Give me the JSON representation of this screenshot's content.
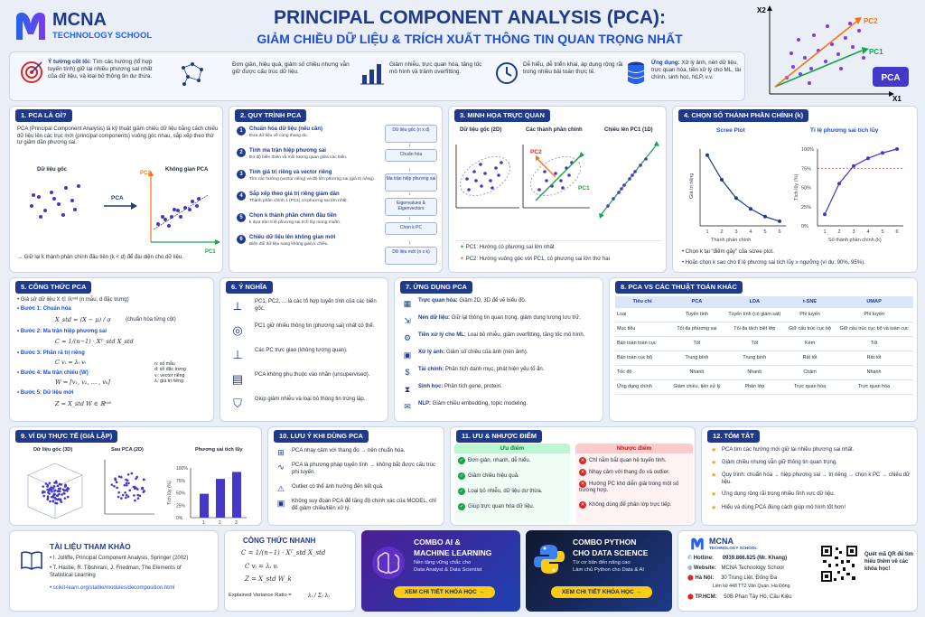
{
  "brand": {
    "name": "MCNA",
    "sub": "TECHNOLOGY SCHOOL"
  },
  "title": {
    "main": "PRINCIPAL COMPONENT ANALYSIS (PCA):",
    "sub": "GIẢM CHIỀU DỮ LIỆU & TRÍCH XUẤT THÔNG TIN QUAN TRỌNG NHẤT"
  },
  "hero": {
    "x2": "X2",
    "x1": "X1",
    "pc1": "PC1",
    "pc2": "PC2",
    "badge": "PCA"
  },
  "banner": {
    "b1_label": "Ý tưởng cốt lõi:",
    "b1_text": "Tìm các hướng (tổ hợp tuyến tính) giữ lại nhiều phương sai nhất của dữ liệu, và loại bỏ thông tin dư thừa.",
    "b2": "Đơn giản, hiệu quả, giảm số chiều nhưng vẫn giữ được cấu trúc dữ liệu.",
    "b3": "Giảm nhiễu, trực quan hóa, tăng tốc mô hình và tránh overfitting.",
    "b4": "Dễ hiểu, dễ triển khai, áp dụng rộng rãi trong nhiều bài toán thực tế.",
    "b5_label": "Ứng dụng:",
    "b5_text": "Xử lý ảnh, nén dữ liệu, trực quan hóa, tiền xử lý cho ML, tài chính, sinh học, NLP, v.v."
  },
  "s1": {
    "head": "1. PCA LÀ GÌ?",
    "text": "PCA (Principal Component Analysis) là kỹ thuật giảm chiều dữ liệu bằng cách chiếu dữ liệu lên các trục mới (principal components) vuông góc nhau, sắp xếp theo thứ tự giảm dần phương sai.",
    "orig": "Dữ liệu gốc",
    "space": "Không gian PCA",
    "pca": "PCA",
    "pc1": "PC1",
    "pc2": "PC2",
    "note": "→ Giữ lại k thành phần chính đầu tiên (k < d) để đại diện cho dữ liệu."
  },
  "s2": {
    "head": "2. QUY TRÌNH PCA",
    "steps": [
      {
        "n": "1",
        "t": "Chuẩn hóa dữ liệu (nếu cần)",
        "d": "Đưa dữ liệu về cùng thang đo."
      },
      {
        "n": "2",
        "t": "Tính ma trận hiệp phương sai",
        "d": "Đo độ biến thiên và mối tương quan giữa các biến."
      },
      {
        "n": "3",
        "t": "Tính giá trị riêng và vector riêng",
        "d": "Tìm các hướng (vector riêng) và độ lớn phương sai (giá trị riêng)."
      },
      {
        "n": "4",
        "t": "Sắp xếp theo giá trị riêng giảm dần",
        "d": "Thành phần chính 1 (PC1) có phương sai lớn nhất."
      },
      {
        "n": "5",
        "t": "Chọn k thành phần chính đầu tiên",
        "d": "k dựa trên tỉ lệ phương sai tích lũy mong muốn."
      },
      {
        "n": "6",
        "t": "Chiếu dữ liệu lên không gian mới",
        "d": "Biến đổi dữ liệu sang không gian k chiều."
      }
    ],
    "flow": [
      "Dữ liệu gốc (n x d)",
      "Chuẩn hóa",
      "Ma trận hiệp phương sai",
      "Eigenvalues & Eigenvectors",
      "Chọn k PC",
      "Dữ liệu mới (n x k)"
    ]
  },
  "s3": {
    "head": "3. MINH HỌA TRỰC QUAN",
    "c1": "Dữ liệu gốc (2D)",
    "c2": "Các thành phần chính",
    "c3": "Chiếu lên PC1 (1D)",
    "pc1": "PC1",
    "pc2": "PC2",
    "l1": "PC1: Hướng có phương sai lớn nhất",
    "l2": "PC2: Hướng vuông góc với PC1, có phương sai lớn thứ hai"
  },
  "s4": {
    "head": "4. CHỌN SỐ THÀNH PHẦN CHÍNH (k)",
    "scree": "Scree Plot",
    "cum": "Tỉ lệ phương sai tích lũy",
    "ylab1": "Giá trị riêng",
    "ylab2": "Tích lũy (%)",
    "xlab": "Thành phần chính",
    "xlab2": "Số thành phần chính (k)",
    "n1": "• Chọn k tại \"điểm gãy\" của scree plot.",
    "n2": "• Hoặc chọn k sao cho tỉ lệ phương sai tích lũy ≥ ngưỡng (ví dụ: 90%, 95%).",
    "ticks": [
      "1",
      "2",
      "3",
      "4",
      "5",
      "6"
    ],
    "yticks": [
      "0%",
      "25%",
      "50%",
      "75%",
      "100%"
    ]
  },
  "s5": {
    "head": "5. CÔNG THỨC PCA",
    "l0": "• Giả sử dữ liệu X ∈ ℝⁿˣᵈ (n mẫu, d đặc trưng)",
    "b1": "• Bước 1: Chuẩn hóa",
    "f1": "X_std = (X − μ) / σ",
    "f1n": "(chuẩn hóa từng cột)",
    "b2": "• Bước 2: Ma trận hiệp phương sai",
    "f2": "C = 1/(n−1) · Xᵀ_std X_std",
    "b3": "• Bước 3: Phân rã trị riêng",
    "f3": "C vᵢ = λᵢ vᵢ",
    "b4": "• Bước 4: Ma trận chiếu (W)",
    "f4": "W = [v₁, v₂, … , vₖ]",
    "b5": "• Bước 5: Dữ liệu mới",
    "f5": "Z = X_std W ∈ ℝⁿˣᵏ",
    "leg": [
      "n: số mẫu",
      "d: số đặc trưng",
      "vᵢ: vector riêng",
      "λᵢ: giá trị riêng"
    ]
  },
  "s6": {
    "head": "6. Ý NGHĨA",
    "items": [
      "PC1, PC2, ... là các tổ hợp tuyến tính của các biến gốc.",
      "PC1 giữ nhiều thông tin (phương sai) nhất có thể.",
      "Các PC trực giao (không tương quan).",
      "PCA không phụ thuộc vào nhãn (unsupervised).",
      "Giúp giảm nhiễu và loại bỏ thông tin trùng lặp."
    ]
  },
  "s7": {
    "head": "7. ỨNG DỤNG PCA",
    "items": [
      {
        "b": "Trực quan hóa:",
        "t": "Giảm 2D, 3D để vẽ biểu đồ."
      },
      {
        "b": "Nén dữ liệu:",
        "t": "Giữ lại thông tin quan trọng, giảm dung lượng lưu trữ."
      },
      {
        "b": "Tiền xử lý cho ML:",
        "t": "Loại bỏ nhiễu, giảm overfitting, tăng tốc mô hình."
      },
      {
        "b": "Xử lý ảnh:",
        "t": "Giảm số chiều của ảnh (nén ảnh)."
      },
      {
        "b": "Tài chính:",
        "t": "Phân tích danh mục, phát hiện yếu tố ẩn."
      },
      {
        "b": "Sinh học:",
        "t": "Phân tích gene, protein."
      },
      {
        "b": "NLP:",
        "t": "Giảm chiều embedding, topic modeling."
      }
    ]
  },
  "s8": {
    "head": "8. PCA VS CÁC THUẬT TOÁN KHÁC",
    "cols": [
      "Tiêu chí",
      "PCA",
      "LDA",
      "t-SNE",
      "UMAP"
    ],
    "rows": [
      [
        "Loại",
        "Tuyến tính",
        "Tuyến tính (có giám sát)",
        "Phi tuyến",
        "Phi tuyến"
      ],
      [
        "Mục tiêu",
        "Tối đa phương sai",
        "Tối đa tách biệt lớp",
        "Giữ cấu trúc cục bộ",
        "Giữ cấu trúc cục bộ và toàn cục"
      ],
      [
        "Bảo toàn toàn cục",
        "Tốt",
        "Tốt",
        "Kém",
        "Tốt"
      ],
      [
        "Bảo toàn cục bộ",
        "Trung bình",
        "Trung bình",
        "Rất tốt",
        "Rất tốt"
      ],
      [
        "Tốc độ",
        "Nhanh",
        "Nhanh",
        "Chậm",
        "Nhanh"
      ],
      [
        "Ứng dụng chính",
        "Giảm chiều, tiền xử lý",
        "Phân lớp",
        "Trực quan hóa",
        "Trực quan hóa"
      ]
    ]
  },
  "s9": {
    "head": "9. VÍ DỤ THỰC TẾ (GIẢ LẬP)",
    "c1": "Dữ liệu gốc (3D)",
    "c2": "Sau PCA (2D)",
    "c3": "Phương sai tích lũy",
    "ylab": "Tích lũy (%)",
    "xlab": "Số thành phần chính",
    "yt": [
      "100%",
      "75%",
      "50%",
      "25%",
      "0%"
    ],
    "xt": [
      "1",
      "2",
      "3"
    ]
  },
  "s10": {
    "head": "10. LƯU Ý KHI DÙNG PCA",
    "items": [
      "PCA nhạy cảm với thang đo → nên chuẩn hóa.",
      "PCA là phương pháp tuyến tính → không bắt được cấu trúc phi tuyến.",
      "Outlier có thể ảnh hưởng đến kết quả.",
      "Không suy đoán PCA để tăng độ chính xác của MODEL, chỉ để giảm chiều/tiền xử lý."
    ]
  },
  "s11": {
    "head": "11. ƯU & NHƯỢC ĐIỂM",
    "pros_h": "Ưu điểm",
    "cons_h": "Nhược điểm",
    "pros": [
      "Đơn giản, nhanh, dễ hiểu.",
      "Giảm chiều hiệu quả.",
      "Loại bỏ nhiễu, dữ liệu dư thừa.",
      "Giúp trực quan hóa dữ liệu."
    ],
    "cons": [
      "Chỉ nắm bắt quan hệ tuyến tính.",
      "Nhạy cảm với thang đo và outlier.",
      "Hướng PC khó diễn giải trong một số trường hợp.",
      "Không dùng để phân lớp trực tiếp."
    ]
  },
  "s12": {
    "head": "12. TÓM TẮT",
    "items": [
      "PCA tìm các hướng mới giữ lại nhiều phương sai nhất.",
      "Giảm chiều nhưng vẫn giữ thông tin quan trọng.",
      "Quy trình: chuẩn hóa → hiệp phương sai → trị riêng → chọn k PC → chiếu dữ liệu.",
      "Ứng dụng rộng rãi trong nhiều lĩnh vực dữ liệu.",
      "Hiểu và dùng PCA đúng cách giúp mô hình tốt hơn!"
    ]
  },
  "refs": {
    "head": "TÀI LIỆU THAM KHẢO",
    "items": [
      "I. Jolliffe, Principal Component Analysis, Springer (2002)",
      "T. Hastie, R. Tibshirani, J. Friedman, The Elements of Statistical Learning",
      "scikit-learn.org/stable/modules/decomposition.html"
    ]
  },
  "quick": {
    "head": "CÔNG THỨC NHANH",
    "f1": "C = 1/(n−1) · Xᵀ_std X_std",
    "f2": "C vᵢ = λᵢ vᵢ",
    "f3": "Z = X_std W_k",
    "evr": "Explained Variance Ratio =",
    "evr_f": "λᵢ / Σⱼ λⱼ"
  },
  "promo1": {
    "title1": "COMBO AI &",
    "title2": "MACHINE LEARNING",
    "d1": "Nền tảng vững chắc cho",
    "d2": "Data Analyst & Data Scientist",
    "btn": "XEM CHI TIẾT KHÓA HỌC →"
  },
  "promo2": {
    "title1": "COMBO PYTHON",
    "title2": "CHO DATA SCIENCE",
    "d1": "Từ cơ bản đến nâng cao",
    "d2": "Làm chủ Python cho Data & AI",
    "btn": "XEM CHI TIẾT KHÓA HỌC →"
  },
  "contact": {
    "brand": "MCNA",
    "sub": "TECHNOLOGY SCHOOL",
    "hotline_l": "Hotline:",
    "hotline": "0939.866.825 (Mr. Khang)",
    "web_l": "Website:",
    "web": "MCNA Technology School",
    "hn_l": "Hà Nội:",
    "hn1": "30 Trung Liệt, Đống Đa",
    "hn2": "Liền kề 448 TT2 Văn Quán, Hà Đông",
    "hcm_l": "TP.HCM:",
    "hcm": "50B Phan Tây Hồ, Cầu Kiệu",
    "qr": "Quét mã QR để tìm hiểu thêm về các khóa học!"
  }
}
